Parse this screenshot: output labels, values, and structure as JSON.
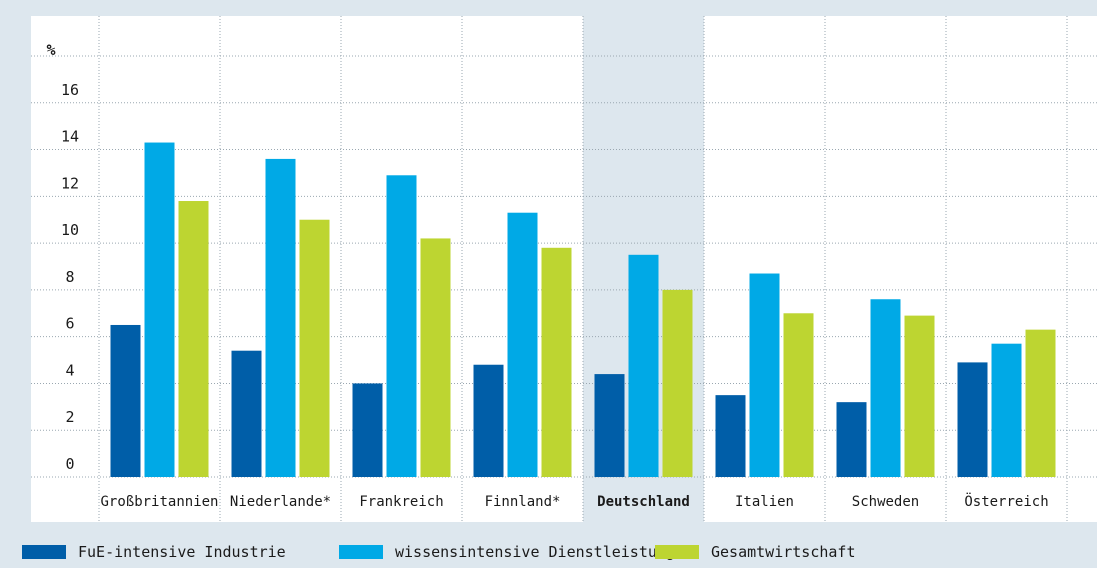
{
  "chart_data": {
    "type": "bar",
    "ylabel": "%",
    "ylim": [
      0,
      18
    ],
    "yticks": [
      0,
      2,
      4,
      6,
      8,
      10,
      12,
      14,
      16
    ],
    "grid": true,
    "legend_position": "bottom",
    "highlight_category": "Deutschland",
    "categories": [
      "Großbritannien",
      "Niederlande*",
      "Frankreich",
      "Finnland*",
      "Deutschland",
      "Italien",
      "Schweden",
      "Österreich"
    ],
    "series": [
      {
        "name": "FuE-intensive Industrie",
        "color": "#005ea8",
        "values": [
          6.5,
          5.4,
          4.0,
          4.8,
          4.4,
          3.5,
          3.2,
          4.9
        ]
      },
      {
        "name": "wissensintensive Dienstleistungen",
        "color": "#00a9e6",
        "values": [
          14.3,
          13.6,
          12.9,
          11.3,
          9.5,
          8.7,
          7.6,
          5.7
        ]
      },
      {
        "name": "Gesamtwirtschaft",
        "color": "#bdd531",
        "values": [
          11.8,
          11.0,
          10.2,
          9.8,
          8.0,
          7.0,
          6.9,
          6.3
        ]
      }
    ]
  }
}
